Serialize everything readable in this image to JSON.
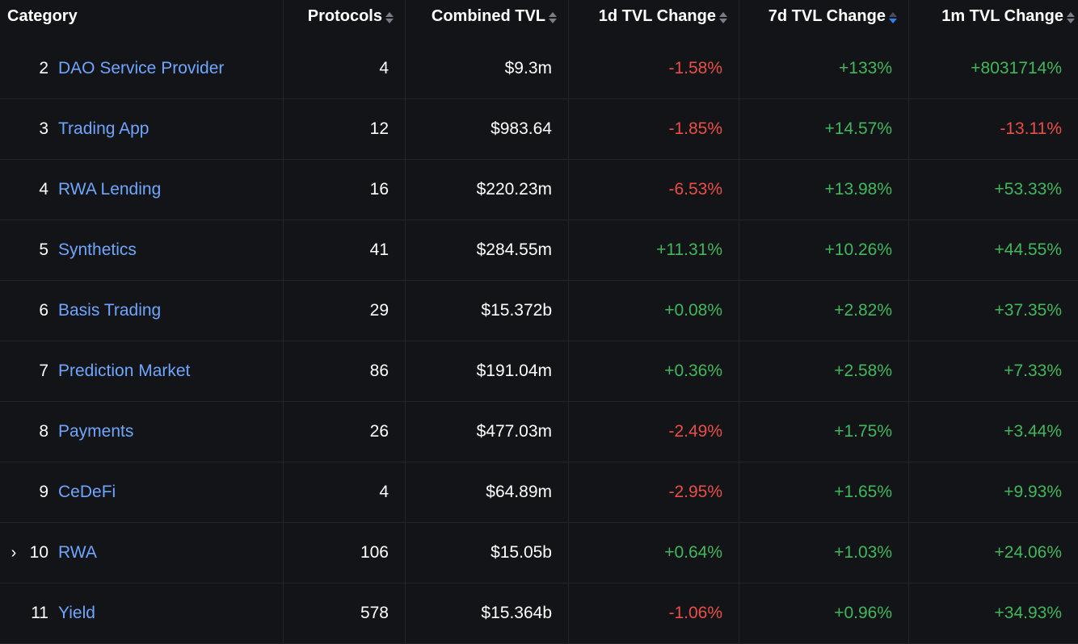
{
  "headers": {
    "category": "Category",
    "protocols": "Protocols",
    "combined_tvl": "Combined TVL",
    "change_1d": "1d TVL Change",
    "change_7d": "7d TVL Change",
    "change_1m": "1m TVL Change"
  },
  "sort": {
    "active_column": "7d TVL Change",
    "direction": "descending"
  },
  "rows": [
    {
      "rank": "2",
      "name": "DAO Service Provider",
      "protocols": "4",
      "tvl": "$9.3m",
      "change_1d": "-1.58%",
      "change_7d": "+133%",
      "change_1m": "+8031714%"
    },
    {
      "rank": "3",
      "name": "Trading App",
      "protocols": "12",
      "tvl": "$983.64",
      "change_1d": "-1.85%",
      "change_7d": "+14.57%",
      "change_1m": "-13.11%"
    },
    {
      "rank": "4",
      "name": "RWA Lending",
      "protocols": "16",
      "tvl": "$220.23m",
      "change_1d": "-6.53%",
      "change_7d": "+13.98%",
      "change_1m": "+53.33%"
    },
    {
      "rank": "5",
      "name": "Synthetics",
      "protocols": "41",
      "tvl": "$284.55m",
      "change_1d": "+11.31%",
      "change_7d": "+10.26%",
      "change_1m": "+44.55%"
    },
    {
      "rank": "6",
      "name": "Basis Trading",
      "protocols": "29",
      "tvl": "$15.372b",
      "change_1d": "+0.08%",
      "change_7d": "+2.82%",
      "change_1m": "+37.35%"
    },
    {
      "rank": "7",
      "name": "Prediction Market",
      "protocols": "86",
      "tvl": "$191.04m",
      "change_1d": "+0.36%",
      "change_7d": "+2.58%",
      "change_1m": "+7.33%"
    },
    {
      "rank": "8",
      "name": "Payments",
      "protocols": "26",
      "tvl": "$477.03m",
      "change_1d": "-2.49%",
      "change_7d": "+1.75%",
      "change_1m": "+3.44%"
    },
    {
      "rank": "9",
      "name": "CeDeFi",
      "protocols": "4",
      "tvl": "$64.89m",
      "change_1d": "-2.95%",
      "change_7d": "+1.65%",
      "change_1m": "+9.93%"
    },
    {
      "rank": "10",
      "name": "RWA",
      "protocols": "106",
      "tvl": "$15.05b",
      "change_1d": "+0.64%",
      "change_7d": "+1.03%",
      "change_1m": "+24.06%",
      "expandable": true
    },
    {
      "rank": "11",
      "name": "Yield",
      "protocols": "578",
      "tvl": "$15.364b",
      "change_1d": "-1.06%",
      "change_7d": "+0.96%",
      "change_1m": "+34.93%"
    }
  ],
  "colors": {
    "background": "#131417",
    "link": "#6ea6ff",
    "negative": "#ea4e46",
    "positive": "#3fb85c",
    "sort_active": "#2f7ef0"
  }
}
